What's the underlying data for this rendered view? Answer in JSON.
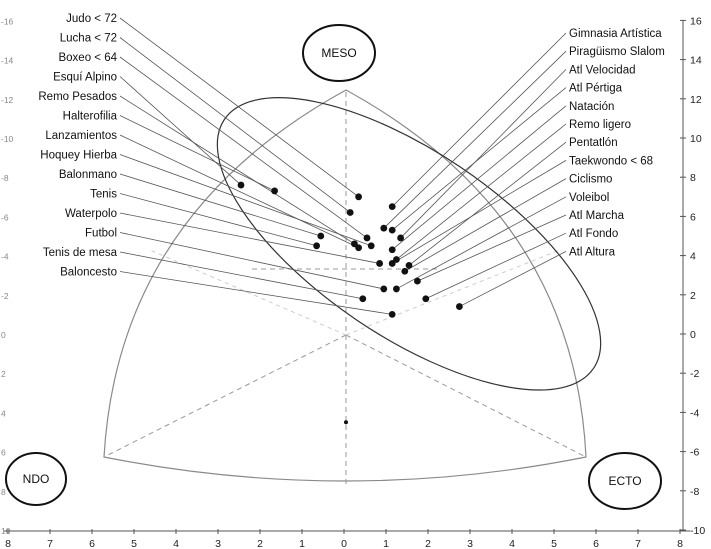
{
  "chart_data": {
    "type": "scatter",
    "corner_labels": {
      "top": "MESO",
      "left": "NDO",
      "right": "ECTO"
    },
    "y_axis_right": {
      "ticks": [
        16,
        14,
        12,
        10,
        8,
        6,
        4,
        2,
        0,
        -2,
        -4,
        -6,
        -8,
        -10
      ],
      "ylim": [
        -10,
        16
      ]
    },
    "y_axis_left_ticks": [
      "-16",
      "-14",
      "-12",
      "-10",
      "-8",
      "-6",
      "-4",
      "-2",
      "0",
      "2",
      "4",
      "6",
      "8",
      "10"
    ],
    "x_axis": {
      "ticks": [
        "8",
        "7",
        "6",
        "5",
        "4",
        "3",
        "2",
        "1",
        "0",
        "1",
        "2",
        "3",
        "4",
        "5",
        "6",
        "7",
        "8"
      ]
    },
    "grid": false,
    "centroid": {
      "x": 0,
      "y": -4.5
    },
    "ellipse": {
      "cx": 1.5,
      "cy": 4.6,
      "rx": 5.3,
      "ry": 2.2,
      "angle_deg": 34
    },
    "series": [
      {
        "points": [
          {
            "label": "Judo < 72",
            "x": 0.3,
            "y": 7.0
          },
          {
            "label": "Lucha < 72",
            "x": 0.1,
            "y": 6.2
          },
          {
            "label": "Boxeo < 64",
            "x": 0.5,
            "y": 4.9
          },
          {
            "label": "Esquí Alpino",
            "x": -2.5,
            "y": 7.6
          },
          {
            "label": "Remo Pesados",
            "x": 0.2,
            "y": 4.6
          },
          {
            "label": "Halterofilia",
            "x": -1.7,
            "y": 7.3
          },
          {
            "label": "Lanzamientos",
            "x": 0.3,
            "y": 4.4
          },
          {
            "label": "Hoquey Hierba",
            "x": 0.6,
            "y": 4.5
          },
          {
            "label": "Balonmano",
            "x": -0.6,
            "y": 5.0
          },
          {
            "label": "Tenis",
            "x": -0.7,
            "y": 4.5
          },
          {
            "label": "Waterpolo",
            "x": 0.8,
            "y": 3.6
          },
          {
            "label": "Futbol",
            "x": 0.9,
            "y": 2.3
          },
          {
            "label": "Tenis de mesa",
            "x": 0.4,
            "y": 1.8
          },
          {
            "label": "Baloncesto",
            "x": 1.1,
            "y": 1.0
          },
          {
            "label": "Gimnasia Artística",
            "x": 1.1,
            "y": 6.5
          },
          {
            "label": "Piragüismo Slalom",
            "x": 0.9,
            "y": 5.4
          },
          {
            "label": "Atl Velocidad",
            "x": 1.3,
            "y": 4.9
          },
          {
            "label": "Atl Pértiga",
            "x": 1.1,
            "y": 5.3
          },
          {
            "label": "Natación",
            "x": 1.1,
            "y": 4.3
          },
          {
            "label": "Remo ligero",
            "x": 1.2,
            "y": 3.8
          },
          {
            "label": "Pentatlón",
            "x": 1.5,
            "y": 3.5
          },
          {
            "label": "Taekwondo < 68",
            "x": 1.1,
            "y": 3.6
          },
          {
            "label": "Ciclismo",
            "x": 1.4,
            "y": 3.2
          },
          {
            "label": "Voleibol",
            "x": 1.2,
            "y": 2.3
          },
          {
            "label": "Atl Marcha",
            "x": 1.7,
            "y": 2.7
          },
          {
            "label": "Atl Fondo",
            "x": 1.9,
            "y": 1.8
          },
          {
            "label": "Atl Altura",
            "x": 2.7,
            "y": 1.4
          }
        ]
      }
    ]
  }
}
